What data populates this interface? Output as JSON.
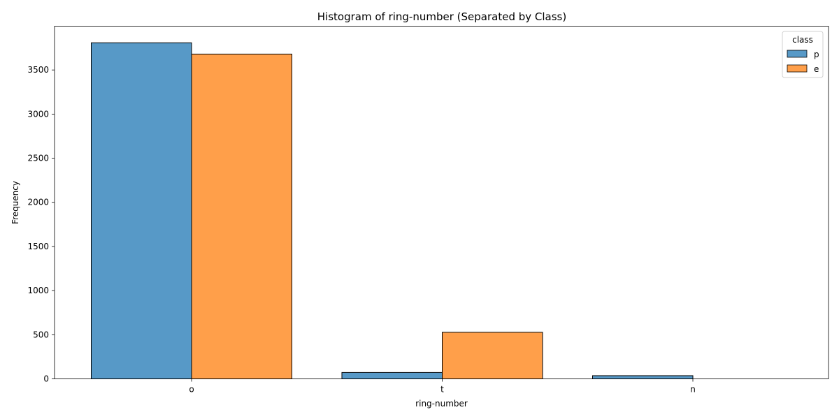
{
  "chart_data": {
    "type": "bar",
    "title": "Histogram of ring-number (Separated by Class)",
    "xlabel": "ring-number",
    "ylabel": "Frequency",
    "categories": [
      "o",
      "t",
      "n"
    ],
    "series": [
      {
        "name": "p",
        "values": [
          3808,
          72,
          36
        ],
        "color": "#5799c7"
      },
      {
        "name": "e",
        "values": [
          3680,
          528,
          0
        ],
        "color": "#ff9f4a"
      }
    ],
    "ylim": [
      0,
      3996
    ],
    "yticks": [
      0,
      500,
      1000,
      1500,
      2000,
      2500,
      3000,
      3500
    ],
    "legend": {
      "title": "class",
      "position": "top-right"
    },
    "grid": false
  }
}
